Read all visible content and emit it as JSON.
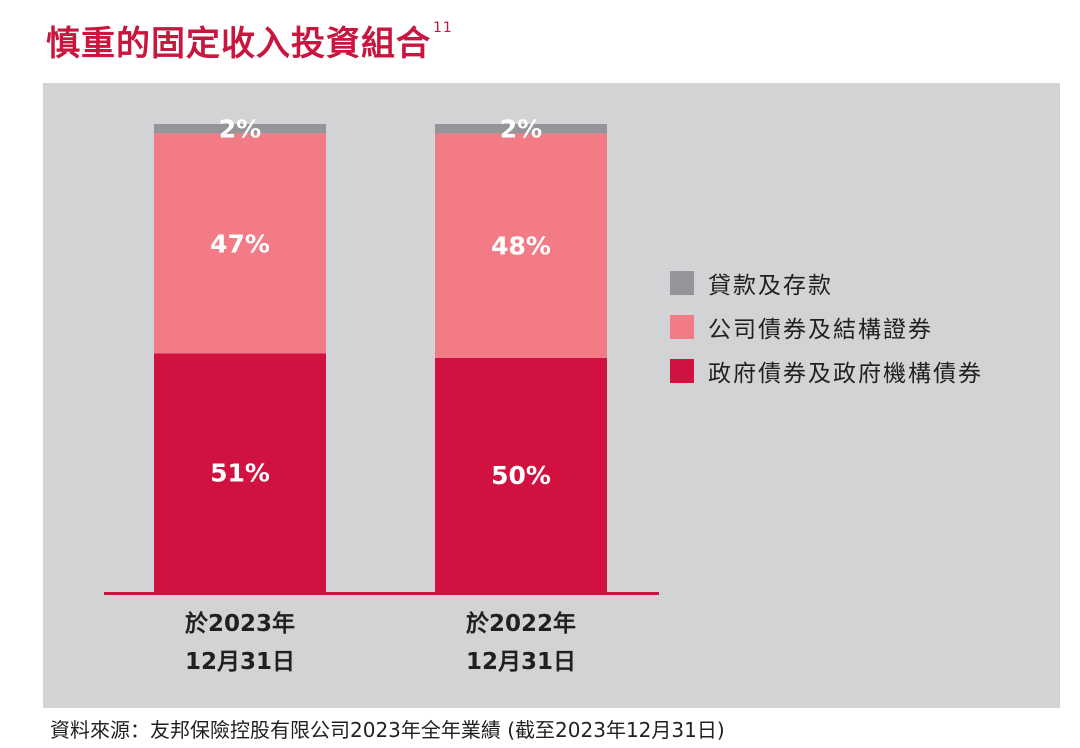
{
  "title": "慎重的固定收入投資組合",
  "title_footnote": "11",
  "source": "資料來源：友邦保險控股有限公司2023年全年業績 (截至2023年12月31日)",
  "colors": {
    "loans": "#939598",
    "corporate": "#f27b86",
    "government": "#d11241",
    "axis": "#c8163e",
    "panel": "#d1d3d4"
  },
  "chart_data": {
    "type": "bar",
    "stacked": true,
    "categories": [
      {
        "line1": "於2023年",
        "line2": "12月31日"
      },
      {
        "line1": "於2022年",
        "line2": "12月31日"
      }
    ],
    "series": [
      {
        "name": "政府債券及政府機構債券",
        "color": "#d11241",
        "values": [
          51,
          50
        ],
        "labels": [
          "51%",
          "50%"
        ]
      },
      {
        "name": "公司債券及結構證券",
        "color": "#f27b86",
        "values": [
          47,
          48
        ],
        "labels": [
          "47%",
          "48%"
        ]
      },
      {
        "name": "貸款及存款",
        "color": "#939598",
        "values": [
          2,
          2
        ],
        "labels": [
          "2%",
          "2%"
        ]
      }
    ],
    "legend_order": [
      "貸款及存款",
      "公司債券及結構證券",
      "政府債券及政府機構債券"
    ],
    "ylim": [
      0,
      100
    ],
    "unit": "%"
  }
}
